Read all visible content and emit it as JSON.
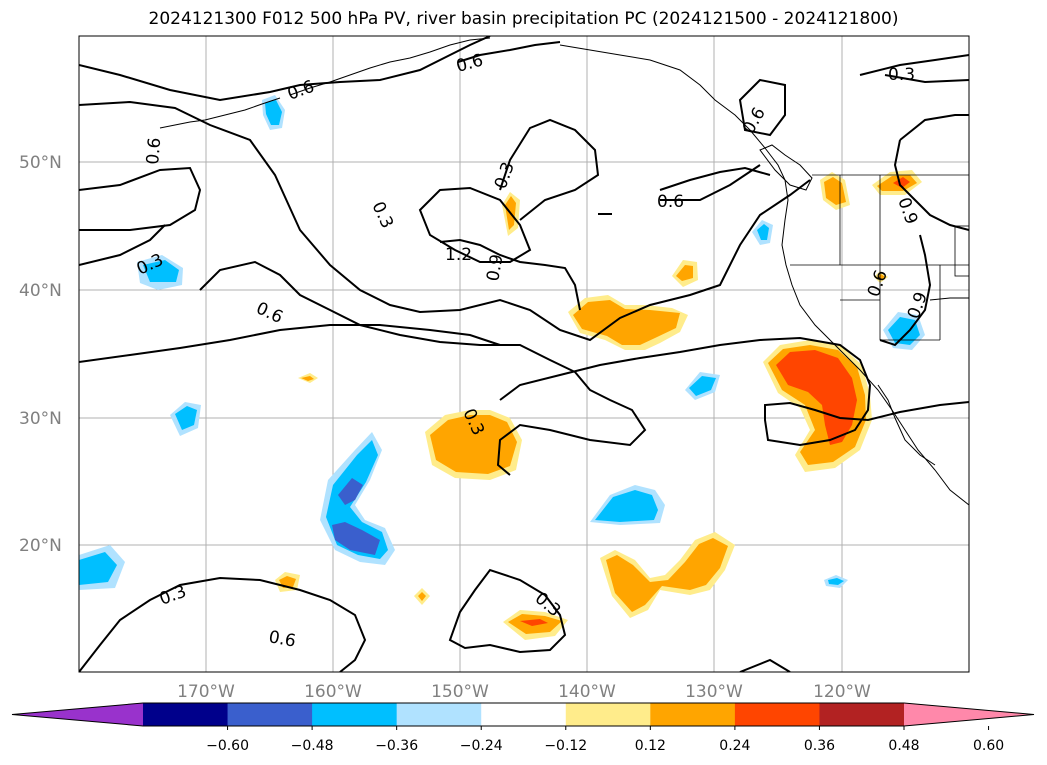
{
  "title": "2024121300 F012 500 hPa PV, river basin precipitation PC (2024121500 - 2024121800)",
  "lat_ticks": [
    "50°N",
    "40°N",
    "30°N",
    "20°N"
  ],
  "lon_ticks": [
    "170°W",
    "160°W",
    "150°W",
    "140°W",
    "130°W",
    "120°W"
  ],
  "contour_labels": [
    "0.6",
    "0.6",
    "0.3",
    "0.6",
    "0.3",
    "0.6",
    "0.3",
    "0.6",
    "1.2",
    "0.9",
    "0.6",
    "0.9",
    "0.6",
    "0.9",
    "0.3",
    "0.3",
    "0.6",
    "0.3",
    "0.3"
  ],
  "colorbar": {
    "colors": [
      "#9932CC",
      "#00008B",
      "#3A5FCD",
      "#00BFFF",
      "#B0E2FF",
      "#FFFFFF",
      "#FFEC8B",
      "#FFA500",
      "#FF4500",
      "#B22222",
      "#FF88AA"
    ],
    "tick_labels": [
      "−0.60",
      "−0.48",
      "−0.36",
      "−0.24",
      "−0.12",
      "0.12",
      "0.24",
      "0.36",
      "0.48",
      "0.60"
    ]
  }
}
